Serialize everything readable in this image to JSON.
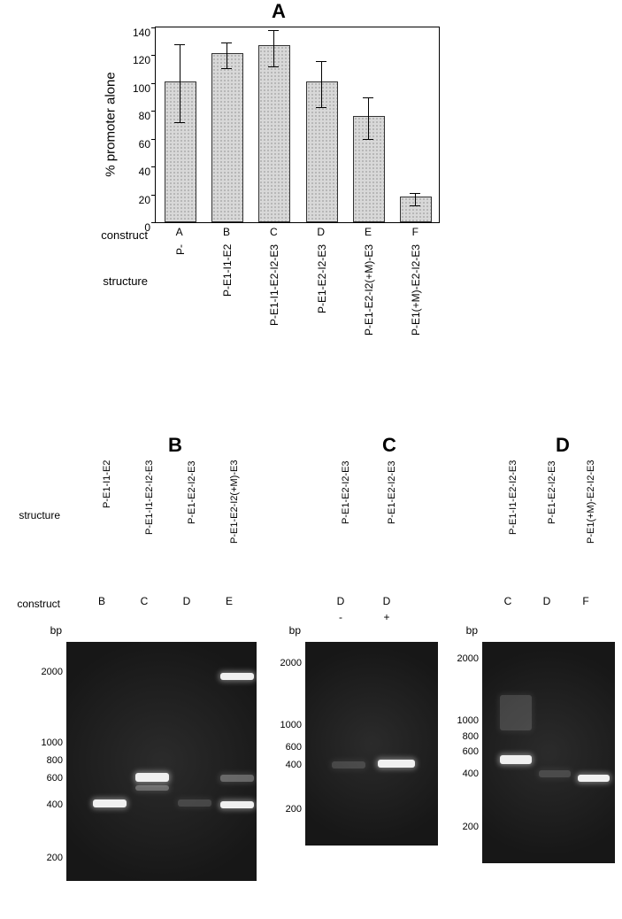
{
  "panelA": {
    "title": "A",
    "ylabel": "% promoter alone",
    "ylim": [
      0,
      140
    ],
    "ytick_step": 20,
    "row_labels": {
      "construct": "construct",
      "structure": "structure"
    },
    "categories": [
      "A",
      "B",
      "C",
      "D",
      "E",
      "F"
    ],
    "structure_labels": [
      "P-",
      "P-E1-I1-E2",
      "P-E1-I1-E2-I2-E3",
      "P-E1-E2-I2-E3",
      "P-E1-E2-I2(+M)-E3",
      "P-E1(+M)-E2-I2-E3"
    ],
    "values": [
      100,
      120,
      126,
      100,
      75,
      17
    ],
    "err_low": [
      28,
      9,
      14,
      17,
      15,
      5
    ],
    "err_high": [
      28,
      9,
      12,
      16,
      15,
      4
    ],
    "bar_color": "#d8d8d8",
    "pattern": "dotted",
    "label_fontsize": 12,
    "background_color": "#ffffff"
  },
  "gels": {
    "leftLabels": {
      "structure": "structure",
      "construct": "construct",
      "bp": "bp"
    },
    "panelB": {
      "title": "B",
      "lanes": [
        {
          "structure": "P-E1-I1-E2",
          "construct": "B"
        },
        {
          "structure": "P-E1-I1-E2-I2-E3",
          "construct": "C"
        },
        {
          "structure": "P-E1-E2-I2-E3",
          "construct": "D"
        },
        {
          "structure": "P-E1-E2-I2(+M)-E3",
          "construct": "E"
        }
      ],
      "markers": [
        "2000",
        "1000",
        "800",
        "600",
        "400",
        "200"
      ]
    },
    "panelC": {
      "title": "C",
      "lanes": [
        {
          "structure": "P-E1-E2-I2-E3",
          "construct": "D",
          "condition": "-"
        },
        {
          "structure": "P-E1-E2-I2-E3",
          "construct": "D",
          "condition": "+"
        }
      ],
      "markers": [
        "2000",
        "1000",
        "600",
        "400",
        "200"
      ]
    },
    "panelD": {
      "title": "D",
      "lanes": [
        {
          "structure": "P-E1-I1-E2-I2-E3",
          "construct": "C"
        },
        {
          "structure": "P-E1-E2-I2-E3",
          "construct": "D"
        },
        {
          "structure": "P-E1(+M)-E2-I2-E3",
          "construct": "F"
        }
      ],
      "markers": [
        "2000",
        "1000",
        "800",
        "600",
        "400",
        "200"
      ]
    }
  }
}
